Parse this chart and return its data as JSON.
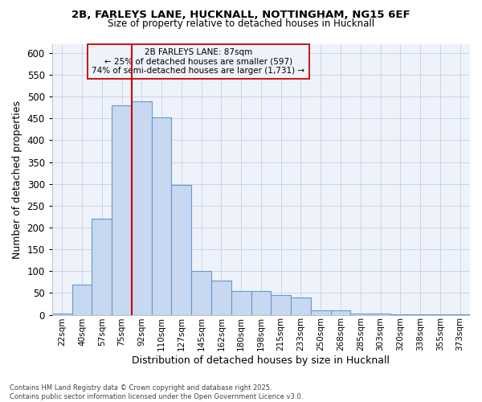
{
  "title_line1": "2B, FARLEYS LANE, HUCKNALL, NOTTINGHAM, NG15 6EF",
  "title_line2": "Size of property relative to detached houses in Hucknall",
  "xlabel": "Distribution of detached houses by size in Hucknall",
  "ylabel": "Number of detached properties",
  "footnote_line1": "Contains HM Land Registry data © Crown copyright and database right 2025.",
  "footnote_line2": "Contains public sector information licensed under the Open Government Licence v3.0.",
  "bar_labels": [
    "22sqm",
    "40sqm",
    "57sqm",
    "75sqm",
    "92sqm",
    "110sqm",
    "127sqm",
    "145sqm",
    "162sqm",
    "180sqm",
    "198sqm",
    "215sqm",
    "233sqm",
    "250sqm",
    "268sqm",
    "285sqm",
    "303sqm",
    "320sqm",
    "338sqm",
    "355sqm",
    "373sqm"
  ],
  "bar_values": [
    3,
    70,
    220,
    480,
    490,
    453,
    297,
    100,
    78,
    55,
    55,
    45,
    40,
    10,
    10,
    3,
    3,
    1,
    1,
    1,
    1
  ],
  "bar_color": "#c8d8f0",
  "bar_edge_color": "#6699cc",
  "bg_color": "#ffffff",
  "plot_bg_color": "#eef2fa",
  "grid_color": "#c8d0e0",
  "vline_x_index": 4,
  "vline_color": "#cc0000",
  "annotation_box_text": "2B FARLEYS LANE: 87sqm\n← 25% of detached houses are smaller (597)\n74% of semi-detached houses are larger (1,731) →",
  "ylim": [
    0,
    620
  ],
  "yticks": [
    0,
    50,
    100,
    150,
    200,
    250,
    300,
    350,
    400,
    450,
    500,
    550,
    600
  ]
}
